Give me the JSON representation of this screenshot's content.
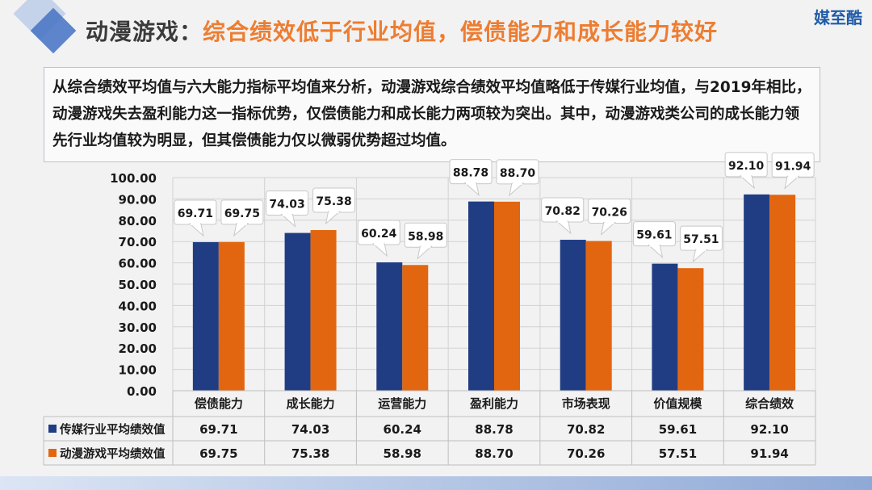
{
  "header": {
    "title_main": "动漫游戏：",
    "title_sub": "综合绩效低于行业均值，偿债能力和成长能力较好",
    "brand": "媒至酷"
  },
  "description": "从综合绩效平均值与六大能力指标平均值来分析，动漫游戏综合绩效平均值略低于传媒行业均值，与2019年相比，动漫游戏失去盈利能力这一指标优势，仅偿债能力和成长能力两项较为突出。其中，动漫游戏类公司的成长能力领先行业均值较为明显，但其偿债能力仅以微弱优势超过均值。",
  "colors": {
    "series_industry": "#203d84",
    "series_anime": "#e2660f",
    "accent_title": "#ed7d31"
  },
  "chart_data": {
    "type": "bar",
    "categories": [
      "偿债能力",
      "成长能力",
      "运营能力",
      "盈利能力",
      "市场表现",
      "价值规模",
      "综合绩效"
    ],
    "series": [
      {
        "name": "传媒行业平均绩效值",
        "values": [
          69.71,
          74.03,
          60.24,
          88.78,
          70.82,
          59.61,
          92.1
        ]
      },
      {
        "name": "动漫游戏平均绩效值",
        "values": [
          69.75,
          75.38,
          58.98,
          88.7,
          70.26,
          57.51,
          91.94
        ]
      }
    ],
    "ylim": [
      0,
      100
    ],
    "yticks": [
      "0.00",
      "10.00",
      "20.00",
      "30.00",
      "40.00",
      "50.00",
      "60.00",
      "70.00",
      "80.00",
      "90.00",
      "100.00"
    ],
    "data_labels": [
      [
        "69.71",
        "74.03",
        "60.24",
        "88.78",
        "70.82",
        "59.61",
        "92.10"
      ],
      [
        "69.75",
        "75.38",
        "58.98",
        "88.70",
        "70.26",
        "57.51",
        "91.94"
      ]
    ],
    "grid": true,
    "legend": "data-table-below"
  }
}
